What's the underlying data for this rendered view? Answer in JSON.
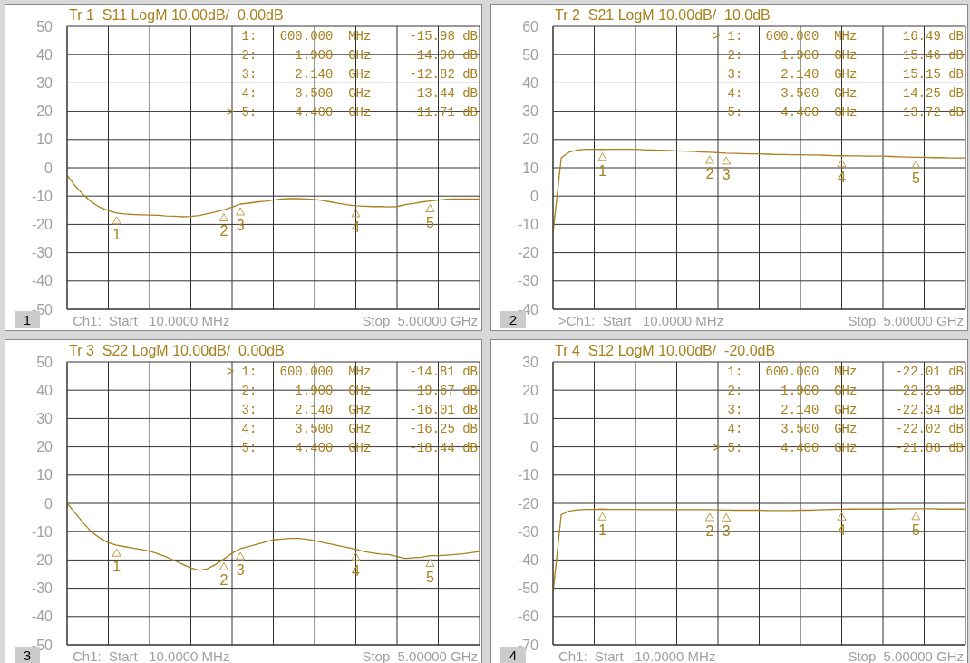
{
  "chart_data": [
    {
      "type": "line",
      "title": "Tr 1  S11 LogM 10.00dB/  0.00dB",
      "categories": [
        null,
        null,
        null,
        null,
        null,
        null,
        null,
        null,
        null,
        null,
        null,
        null,
        null,
        null,
        null,
        null,
        null,
        null,
        null,
        null,
        null,
        null,
        null,
        null,
        null,
        null,
        null,
        null,
        null,
        null,
        null,
        null,
        null,
        null,
        null,
        null,
        null,
        null,
        null,
        null,
        null,
        null,
        null,
        null,
        null,
        null,
        null,
        null,
        null,
        null,
        null
      ],
      "series": [
        {
          "color": "#a8801c",
          "values": [
            -2.6,
            -6.5,
            -9.6,
            -12.2,
            -14.0,
            -15.2,
            -15.98,
            -16.3,
            -16.5,
            -16.6,
            -16.7,
            -16.8,
            -17.0,
            -17.1,
            -17.3,
            -17.2,
            -16.9,
            -16.2,
            -15.6,
            -14.9,
            -13.9,
            -12.82,
            -12.5,
            -12.1,
            -11.8,
            -11.4,
            -11.0,
            -10.9,
            -10.9,
            -11.0,
            -11.2,
            -11.6,
            -12.1,
            -12.6,
            -13.1,
            -13.44,
            -13.6,
            -13.7,
            -13.7,
            -13.8,
            -13.7,
            -13.0,
            -12.6,
            -12.1,
            -11.71,
            -11.4,
            -11.1,
            -11.0,
            -11.0,
            -11.0,
            -11.0
          ]
        }
      ],
      "ylim": [
        -50,
        50
      ],
      "yticks": [
        -50,
        -40,
        -30,
        -20,
        -10,
        0,
        10,
        20,
        30,
        40,
        50
      ],
      "grid": true,
      "tick_labels": "y",
      "annotations": [
        {
          "text": "1",
          "y": -15.98
        },
        {
          "text": "2",
          "y": -14.9
        },
        {
          "text": "3",
          "y": -12.82
        },
        {
          "text": "4",
          "y": -13.44
        },
        {
          "text": "5",
          "y": -11.71
        },
        "1:   600.000  MHz     -15.98 dB",
        "2:     1.900  GHz     -14.90 dB",
        "3:     2.140  GHz     -12.82 dB",
        "4:     3.500  GHz     -13.44 dB",
        "> 5:     4.400  GHz     -11.71 dB",
        "Ch1:  Start   10.0000 MHz",
        "Stop  5.00000 GHz",
        "1"
      ]
    },
    {
      "type": "line",
      "title": "Tr 2  S21 LogM 10.00dB/  10.0dB",
      "categories": [
        null,
        null,
        null,
        null,
        null,
        null,
        null,
        null,
        null,
        null,
        null,
        null,
        null,
        null,
        null,
        null,
        null,
        null,
        null,
        null,
        null,
        null,
        null,
        null,
        null,
        null,
        null,
        null,
        null,
        null,
        null,
        null,
        null,
        null,
        null,
        null,
        null,
        null,
        null,
        null,
        null,
        null,
        null,
        null,
        null,
        null,
        null,
        null,
        null,
        null,
        null
      ],
      "series": [
        {
          "color": "#a8801c",
          "values": [
            -13,
            13.5,
            15.6,
            16.3,
            16.5,
            16.5,
            16.49,
            16.5,
            16.5,
            16.5,
            16.5,
            16.4,
            16.3,
            16.2,
            16.1,
            16.0,
            15.9,
            15.8,
            15.6,
            15.46,
            15.3,
            15.15,
            15.1,
            15.0,
            14.9,
            14.9,
            14.8,
            14.7,
            14.7,
            14.6,
            14.6,
            14.5,
            14.5,
            14.4,
            14.3,
            14.25,
            14.2,
            14.2,
            14.1,
            14.1,
            14.1,
            14.0,
            13.9,
            13.8,
            13.72,
            13.7,
            13.6,
            13.6,
            13.5,
            13.5,
            13.5
          ]
        }
      ],
      "ylim": [
        -40,
        60
      ],
      "yticks": [
        -40,
        -30,
        -20,
        -10,
        0,
        10,
        20,
        30,
        40,
        50,
        60
      ],
      "grid": true,
      "tick_labels": "y",
      "annotations": [
        {
          "text": "1",
          "y": 16.49
        },
        {
          "text": "2",
          "y": 15.46
        },
        {
          "text": "3",
          "y": 15.15
        },
        {
          "text": "4",
          "y": 14.25
        },
        {
          "text": "5",
          "y": 13.72
        },
        "> 1:   600.000  MHz      16.49 dB",
        "2:     1.900  GHz      15.46 dB",
        "3:     2.140  GHz      15.15 dB",
        "4:     3.500  GHz      14.25 dB",
        "5:     4.400  GHz      13.72 dB",
        ">Ch1:  Start   10.0000 MHz",
        "Stop  5.00000 GHz",
        "2"
      ]
    },
    {
      "type": "line",
      "title": "Tr 3  S22 LogM 10.00dB/  0.00dB",
      "categories": [
        null,
        null,
        null,
        null,
        null,
        null,
        null,
        null,
        null,
        null,
        null,
        null,
        null,
        null,
        null,
        null,
        null,
        null,
        null,
        null,
        null,
        null,
        null,
        null,
        null,
        null,
        null,
        null,
        null,
        null,
        null,
        null,
        null,
        null,
        null,
        null,
        null,
        null,
        null,
        null,
        null,
        null,
        null,
        null,
        null,
        null,
        null,
        null,
        null,
        null,
        null
      ],
      "series": [
        {
          "color": "#a8801c",
          "values": [
            0,
            -3.5,
            -7.0,
            -10.2,
            -12.3,
            -13.9,
            -14.81,
            -15.3,
            -15.8,
            -16.3,
            -16.9,
            -17.8,
            -18.9,
            -20.2,
            -21.5,
            -22.8,
            -23.7,
            -23.1,
            -21.6,
            -19.67,
            -17.6,
            -16.01,
            -15.3,
            -14.5,
            -13.7,
            -12.9,
            -12.6,
            -12.4,
            -12.4,
            -12.6,
            -13.2,
            -13.8,
            -14.4,
            -15.0,
            -15.6,
            -16.25,
            -17.0,
            -17.5,
            -17.9,
            -18.1,
            -18.8,
            -19.4,
            -19.2,
            -19.0,
            -18.44,
            -18.5,
            -18.3,
            -18.1,
            -17.8,
            -17.4,
            -17.0
          ]
        }
      ],
      "ylim": [
        -50,
        50
      ],
      "yticks": [
        -50,
        -40,
        -30,
        -20,
        -10,
        0,
        10,
        20,
        30,
        40,
        50
      ],
      "grid": true,
      "tick_labels": "y",
      "annotations": [
        {
          "text": "1",
          "y": -14.81
        },
        {
          "text": "2",
          "y": -19.67
        },
        {
          "text": "3",
          "y": -16.01
        },
        {
          "text": "4",
          "y": -16.25
        },
        {
          "text": "5",
          "y": -18.44
        },
        "> 1:   600.000  MHz     -14.81 dB",
        "2:     1.900  GHz     -19.67 dB",
        "3:     2.140  GHz     -16.01 dB",
        "4:     3.500  GHz     -16.25 dB",
        "5:     4.400  GHz     -18.44 dB",
        "Ch1:  Start   10.0000 MHz",
        "Stop  5.00000 GHz",
        "3"
      ]
    },
    {
      "type": "line",
      "title": "Tr 4  S12 LogM 10.00dB/  -20.0dB",
      "categories": [
        null,
        null,
        null,
        null,
        null,
        null,
        null,
        null,
        null,
        null,
        null,
        null,
        null,
        null,
        null,
        null,
        null,
        null,
        null,
        null,
        null,
        null,
        null,
        null,
        null,
        null,
        null,
        null,
        null,
        null,
        null,
        null,
        null,
        null,
        null,
        null,
        null,
        null,
        null,
        null,
        null,
        null,
        null,
        null,
        null,
        null,
        null,
        null,
        null,
        null,
        null
      ],
      "series": [
        {
          "color": "#a8801c",
          "values": [
            -51.7,
            -24.0,
            -22.7,
            -22.3,
            -22.1,
            -22.1,
            -22.01,
            -22.1,
            -22.1,
            -22.1,
            -22.1,
            -22.2,
            -22.2,
            -22.2,
            -22.2,
            -22.2,
            -22.2,
            -22.2,
            -22.2,
            -22.23,
            -22.3,
            -22.34,
            -22.4,
            -22.4,
            -22.4,
            -22.4,
            -22.5,
            -22.5,
            -22.5,
            -22.5,
            -22.4,
            -22.4,
            -22.3,
            -22.2,
            -22.1,
            -22.02,
            -22.0,
            -22.0,
            -22.0,
            -22.0,
            -22.0,
            -22.0,
            -21.9,
            -21.9,
            -21.88,
            -21.9,
            -21.9,
            -22.0,
            -22.0,
            -22.0,
            -22.0
          ]
        }
      ],
      "ylim": [
        -70,
        30
      ],
      "yticks": [
        -70,
        -60,
        -50,
        -40,
        -30,
        -20,
        -10,
        0,
        10,
        20,
        30
      ],
      "grid": true,
      "tick_labels": "y",
      "annotations": [
        {
          "text": "1",
          "y": -22.01
        },
        {
          "text": "2",
          "y": -22.23
        },
        {
          "text": "3",
          "y": -22.34
        },
        {
          "text": "4",
          "y": -22.02
        },
        {
          "text": "5",
          "y": -21.88
        },
        "1:   600.000  MHz     -22.01 dB",
        "2:     1.900  GHz     -22.23 dB",
        "3:     2.140  GHz     -22.34 dB",
        "4:     3.500  GHz     -22.02 dB",
        "> 5:     4.400  GHz     -21.88 dB",
        "Ch1:  Start   10.0000 MHz",
        "Stop  5.00000 GHz",
        "4"
      ]
    }
  ]
}
